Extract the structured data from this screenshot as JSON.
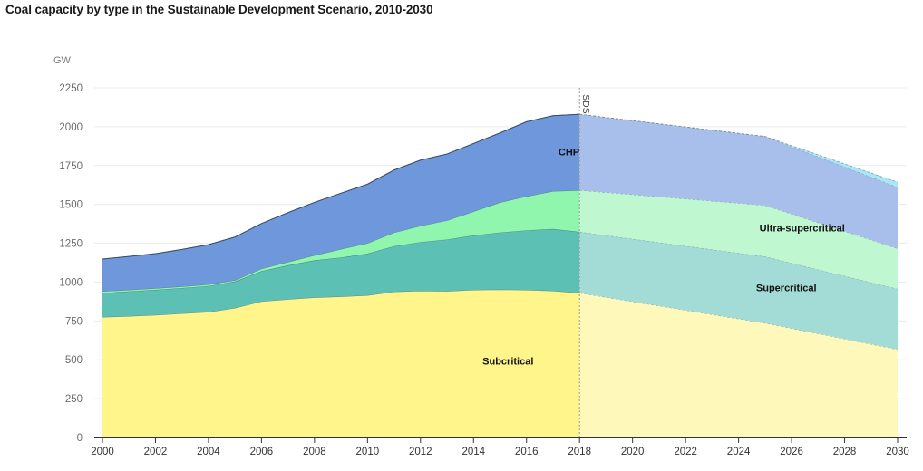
{
  "chart_data": {
    "type": "area",
    "stacked": true,
    "title": "Coal capacity by type in the Sustainable Development Scenario, 2010-2030",
    "ylabel": "GW",
    "xlabel": "",
    "ylim": [
      0,
      2250
    ],
    "xlim": [
      2000,
      2030
    ],
    "y_ticks": [
      0,
      250,
      500,
      750,
      1000,
      1250,
      1500,
      1750,
      2000,
      2250
    ],
    "x_ticks": [
      2000,
      2002,
      2004,
      2006,
      2008,
      2010,
      2012,
      2014,
      2016,
      2018,
      2020,
      2022,
      2024,
      2026,
      2028,
      2030
    ],
    "grid": true,
    "legend": "inline-labels",
    "scenario_marker": {
      "x": 2018,
      "label": "SDS"
    },
    "historical": {
      "x": [
        2000,
        2001,
        2002,
        2003,
        2004,
        2005,
        2006,
        2007,
        2008,
        2009,
        2010,
        2011,
        2012,
        2013,
        2014,
        2015,
        2016,
        2017,
        2018
      ],
      "series": [
        {
          "name": "Subcritical",
          "label": "Subcritical",
          "color": "#fff58a",
          "values": [
            775,
            781,
            788,
            798,
            808,
            833,
            876,
            889,
            901,
            907,
            915,
            938,
            944,
            942,
            950,
            952,
            950,
            944,
            930
          ]
        },
        {
          "name": "Supercritical",
          "label": "Supercritical",
          "color": "#5dc0b5",
          "values": [
            155,
            159,
            162,
            164,
            167,
            171,
            194,
            219,
            239,
            251,
            268,
            293,
            313,
            332,
            350,
            367,
            383,
            398,
            393
          ]
        },
        {
          "name": "Ultra-supercritical",
          "label": "Ultra-supercritical",
          "color": "#90f5ad",
          "values": [
            10,
            10,
            10,
            10,
            10,
            8,
            16,
            22,
            33,
            54,
            68,
            88,
            105,
            123,
            155,
            194,
            219,
            243,
            268
          ]
        },
        {
          "name": "CHP",
          "label": "CHP",
          "color": "#6e97dc",
          "values": [
            208,
            215,
            223,
            238,
            256,
            278,
            291,
            317,
            340,
            360,
            379,
            402,
            423,
            427,
            437,
            447,
            480,
            486,
            489
          ]
        },
        {
          "name": "Other",
          "label": "",
          "color": "#a8e6f8",
          "values": [
            0,
            0,
            0,
            0,
            0,
            0,
            0,
            0,
            0,
            0,
            0,
            0,
            0,
            0,
            0,
            0,
            0,
            0,
            0
          ]
        }
      ]
    },
    "projection": {
      "x": [
        2018,
        2025,
        2030
      ],
      "series": [
        {
          "name": "Subcritical",
          "color": "#fff8bb",
          "values": [
            930,
            736,
            567
          ]
        },
        {
          "name": "Supercritical",
          "color": "#a3dcd6",
          "values": [
            393,
            428,
            389
          ]
        },
        {
          "name": "Ultra-supercritical",
          "color": "#bff7d0",
          "values": [
            268,
            330,
            260
          ]
        },
        {
          "name": "CHP",
          "color": "#a9bfeb",
          "values": [
            489,
            443,
            394
          ]
        },
        {
          "name": "Other",
          "color": "#a8e6f8",
          "values": [
            0,
            0,
            33
          ]
        }
      ]
    },
    "annotations": [
      {
        "text": "CHP",
        "x": 2017.6,
        "y": 1815
      },
      {
        "text": "Ultra-supercritical",
        "x": 2026.4,
        "y": 1325
      },
      {
        "text": "Supercritical",
        "x": 2025.8,
        "y": 940
      },
      {
        "text": "Subcritical",
        "x": 2015.3,
        "y": 470
      }
    ]
  }
}
